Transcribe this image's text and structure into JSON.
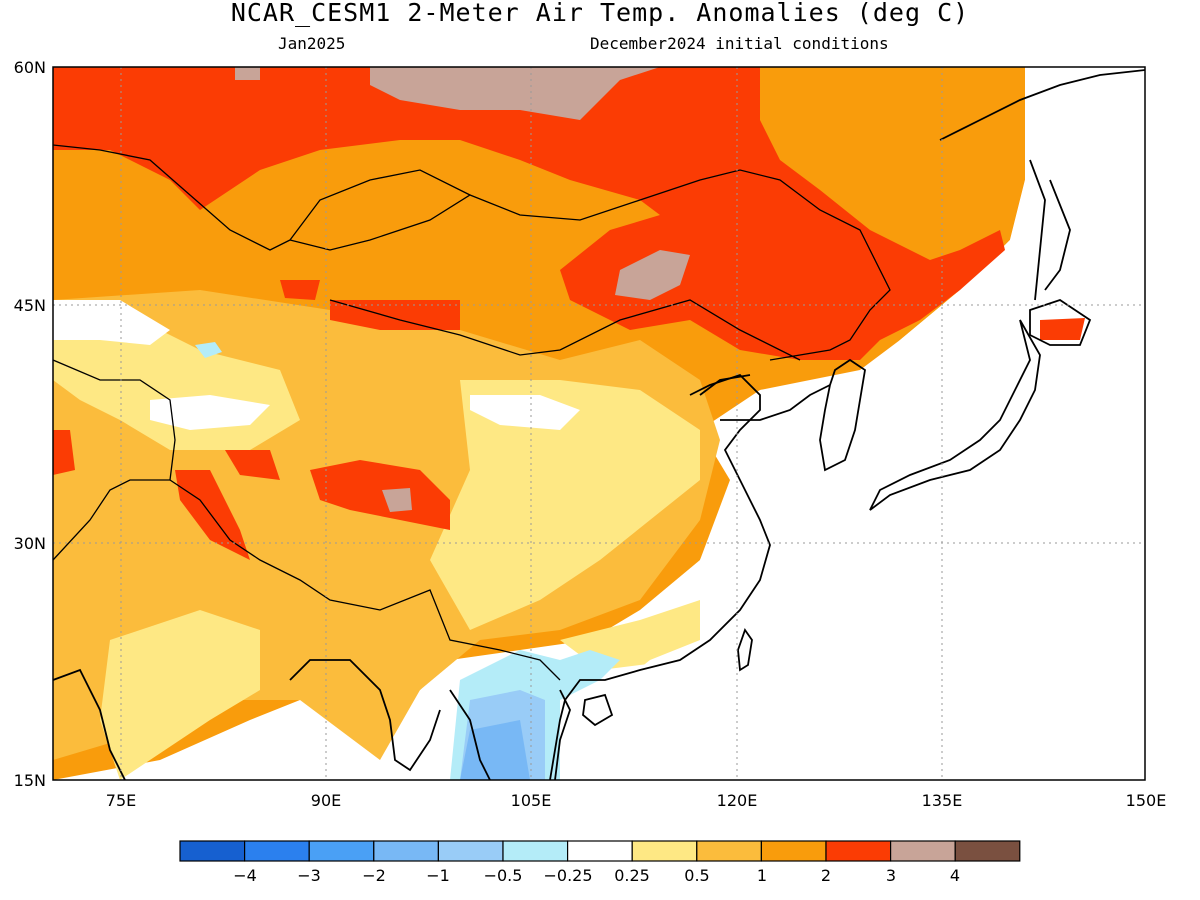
{
  "title": "NCAR_CESM1 2-Meter Air Temp. Anomalies (deg C)",
  "subtitle_left": "Jan2025",
  "subtitle_right": "December2024 initial conditions",
  "map": {
    "lat_labels": [
      "60N",
      "45N",
      "30N",
      "15N"
    ],
    "lon_labels": [
      "75E",
      "90E",
      "105E",
      "120E",
      "135E",
      "150E"
    ],
    "lon_range_deg_east": [
      70,
      150
    ],
    "lat_range_deg_north": [
      15,
      60
    ]
  },
  "legend": {
    "colors": [
      "#1660d0",
      "#2b80ee",
      "#4aa0f5",
      "#78b8f5",
      "#99ccf7",
      "#b4ecf8",
      "#ffffff",
      "#fee884",
      "#fbbc3c",
      "#f99c0c",
      "#fb3c04",
      "#c8a498",
      "#7a5040"
    ],
    "tick_labels": [
      "−4",
      "−3",
      "−2",
      "−1",
      "−0.5",
      "−0.25",
      "0.25",
      "0.5",
      "1",
      "2",
      "3",
      "4"
    ]
  },
  "anomaly_colors": {
    "light_blue": "#b4ecf8",
    "mid_blue": "#99ccf7",
    "blue": "#78b8f5",
    "white": "#ffffff",
    "pale_yellow": "#fee884",
    "light_orange": "#fbbc3c",
    "orange": "#f99c0c",
    "red": "#fb3c04",
    "mauve": "#c8a498"
  }
}
